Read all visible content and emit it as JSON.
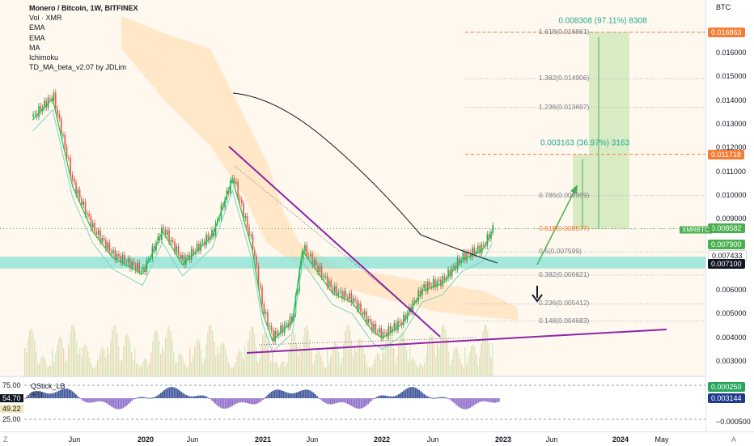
{
  "legend": {
    "title": "Monero / Bitcoin, 1W, BITFINEX",
    "indicators": [
      "Vol · XMR",
      "EMA",
      "EMA",
      "MA",
      "Ichimoku",
      "TD_MA_beta_v2.07 by JDLim"
    ]
  },
  "oscillator": {
    "name": "QStick_LB",
    "sub": "RSI",
    "tags": [
      {
        "text": "75.00",
        "bg": "#ffffff",
        "fg": "#131722"
      },
      {
        "text": "54.70",
        "bg": "#131722",
        "fg": "#ffffff"
      },
      {
        "text": "49.22",
        "bg": "#f0e6b4",
        "fg": "#131722"
      },
      {
        "text": "25.00",
        "bg": "#ffffff",
        "fg": "#131722"
      }
    ],
    "right_tags": [
      {
        "text": "0.000250",
        "bg": "#26a65b",
        "fg": "#ffffff"
      },
      {
        "text": "0.003144",
        "bg": "#1e3a8a",
        "fg": "#ffffff"
      }
    ],
    "bottom_value": "−0.000500"
  },
  "time_axis": {
    "labels": [
      "Jun",
      "2020",
      "Jun",
      "2021",
      "Jun",
      "2022",
      "Jun",
      "2023",
      "Jun",
      "2024",
      "May"
    ],
    "bold": [
      "2020",
      "2021",
      "2022",
      "2023",
      "2024"
    ],
    "corner_left": "Z",
    "corner_right": "A"
  },
  "price_axis": {
    "unit": "BTC",
    "labels": [
      "0.016000",
      "0.015000",
      "0.014000",
      "0.013000",
      "0.012000",
      "0.011000",
      "0.010000",
      "0.009000",
      "0.006000",
      "0.005000",
      "0.004000",
      "0.003000"
    ],
    "tags": [
      {
        "text": "0.016863",
        "value": 0.016863,
        "bg": "#f57c32",
        "fg": "#ffffff"
      },
      {
        "text": "0.011718",
        "value": 0.011718,
        "bg": "#f57c32",
        "fg": "#ffffff"
      },
      {
        "text": "0.008582",
        "value": 0.008582,
        "bg": "#4caf50",
        "fg": "#ffffff"
      },
      {
        "text": "0.007900",
        "value": 0.0079,
        "bg": "#4caf50",
        "fg": "#ffffff"
      },
      {
        "text": "0.007433",
        "value": 0.007433,
        "bg": "#ffffff",
        "fg": "#131722"
      },
      {
        "text": "0.007100",
        "value": 0.0071,
        "bg": "#131722",
        "fg": "#ffffff"
      }
    ],
    "symbol_tag": "XMRBTC"
  },
  "fib_levels": [
    {
      "label": "1.618(0.016861)",
      "value": 0.016861
    },
    {
      "label": "1.382(0.014906)",
      "value": 0.014906
    },
    {
      "label": "1.236(0.013697)",
      "value": 0.013697
    },
    {
      "label": "0.786(0.009969)",
      "value": 0.009969
    },
    {
      "label": "0.618(0.008577)",
      "value": 0.008577
    },
    {
      "label": "0.5(0.007599)",
      "value": 0.007599
    },
    {
      "label": "0.382(0.006621)",
      "value": 0.006621
    },
    {
      "label": "0.236(0.005412)",
      "value": 0.005412
    },
    {
      "label": "0.148(0.004683)",
      "value": 0.004683
    }
  ],
  "measurements": [
    {
      "text": "0.008308 (97.11%) 8308",
      "from": 0.008555,
      "to": 0.016863
    },
    {
      "text": "0.003163 (36.97%) 3163",
      "from": 0.008555,
      "to": 0.011718
    }
  ],
  "colors": {
    "up": "#26a65b",
    "down": "#ef5350",
    "trendline": "#8e24aa",
    "support_zone": "#7fdfd3",
    "target_zone": "#c8e6b4",
    "cloud": "#ffd9a8",
    "ma": "#131722",
    "ema_fast": "#26c64b",
    "ema_slow": "#7fd3c4"
  },
  "chart_data": {
    "type": "candlestick",
    "title": "Monero / Bitcoin, 1W, BITFINEX",
    "ylabel": "BTC",
    "ylim": [
      0.0025,
      0.0175
    ],
    "x_range": [
      "2019-01",
      "2024-06"
    ],
    "keypoints": [
      {
        "date": "2019-02",
        "close": 0.0133
      },
      {
        "date": "2019-04",
        "close": 0.0142
      },
      {
        "date": "2019-06",
        "close": 0.0105
      },
      {
        "date": "2019-08",
        "close": 0.0086
      },
      {
        "date": "2019-10",
        "close": 0.0075
      },
      {
        "date": "2020-01",
        "close": 0.0068
      },
      {
        "date": "2020-03",
        "close": 0.0086
      },
      {
        "date": "2020-05",
        "close": 0.0072
      },
      {
        "date": "2020-08",
        "close": 0.0084
      },
      {
        "date": "2020-10",
        "close": 0.0108
      },
      {
        "date": "2020-12",
        "close": 0.0078
      },
      {
        "date": "2021-01",
        "close": 0.0052
      },
      {
        "date": "2021-02",
        "close": 0.004
      },
      {
        "date": "2021-04",
        "close": 0.0048
      },
      {
        "date": "2021-05",
        "close": 0.0078
      },
      {
        "date": "2021-06",
        "close": 0.0072
      },
      {
        "date": "2021-08",
        "close": 0.006
      },
      {
        "date": "2021-10",
        "close": 0.0056
      },
      {
        "date": "2021-12",
        "close": 0.0044
      },
      {
        "date": "2022-01",
        "close": 0.0041
      },
      {
        "date": "2022-03",
        "close": 0.0047
      },
      {
        "date": "2022-05",
        "close": 0.0061
      },
      {
        "date": "2022-07",
        "close": 0.0064
      },
      {
        "date": "2022-09",
        "close": 0.0074
      },
      {
        "date": "2022-11",
        "close": 0.0078
      },
      {
        "date": "2022-12",
        "close": 0.00858
      }
    ],
    "volume": "weekly volume bars (XMR)"
  }
}
